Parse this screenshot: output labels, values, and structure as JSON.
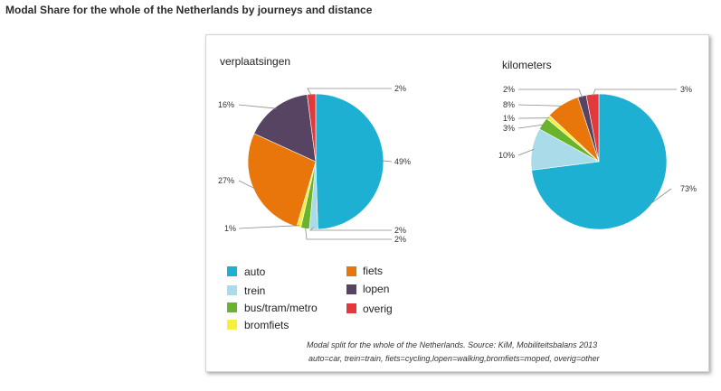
{
  "page": {
    "title": "Modal Share for the whole of the Netherlands by journeys and distance"
  },
  "colors": {
    "auto": "#1eb0d2",
    "trein": "#a9dbe8",
    "bus_tram_metro": "#6ab42d",
    "bromfiets": "#f7ef3d",
    "fiets": "#e8760b",
    "lopen": "#574463",
    "overig": "#e23a3c",
    "leader_line": "#8a8a8a"
  },
  "chart_data": [
    {
      "type": "pie",
      "title": "verplaatsingen",
      "categories": [
        "auto",
        "trein",
        "bus/tram/metro",
        "bromfiets",
        "fiets",
        "lopen",
        "overig"
      ],
      "values": [
        49,
        2,
        2,
        1,
        27,
        16,
        2
      ],
      "labels": [
        "49%",
        "2%",
        "2%",
        "1%",
        "27%",
        "16%",
        "2%"
      ],
      "direction": "clockwise from 12 o'clock"
    },
    {
      "type": "pie",
      "title": "kilometers",
      "categories": [
        "auto",
        "trein",
        "bus/tram/metro",
        "bromfiets",
        "fiets",
        "lopen",
        "overig"
      ],
      "values": [
        73,
        10,
        3,
        1,
        8,
        2,
        3
      ],
      "labels": [
        "73%",
        "10%",
        "3%",
        "1%",
        "8%",
        "2%",
        "3%"
      ],
      "direction": "clockwise from 12 o'clock"
    }
  ],
  "legend": [
    {
      "key": "auto",
      "label": "auto"
    },
    {
      "key": "trein",
      "label": "trein"
    },
    {
      "key": "bus_tram_metro",
      "label": "bus/tram/metro"
    },
    {
      "key": "bromfiets",
      "label": "bromfiets"
    },
    {
      "key": "fiets",
      "label": "fiets"
    },
    {
      "key": "lopen",
      "label": "lopen"
    },
    {
      "key": "overig",
      "label": "overig"
    }
  ],
  "caption": {
    "line1": "Modal split for the whole of the Netherlands. Source: KiM, Mobiliteitsbalans 2013",
    "line2": "auto=car, trein=train, fiets=cycling,lopen=walking,bromfiets=moped, overig=other"
  }
}
